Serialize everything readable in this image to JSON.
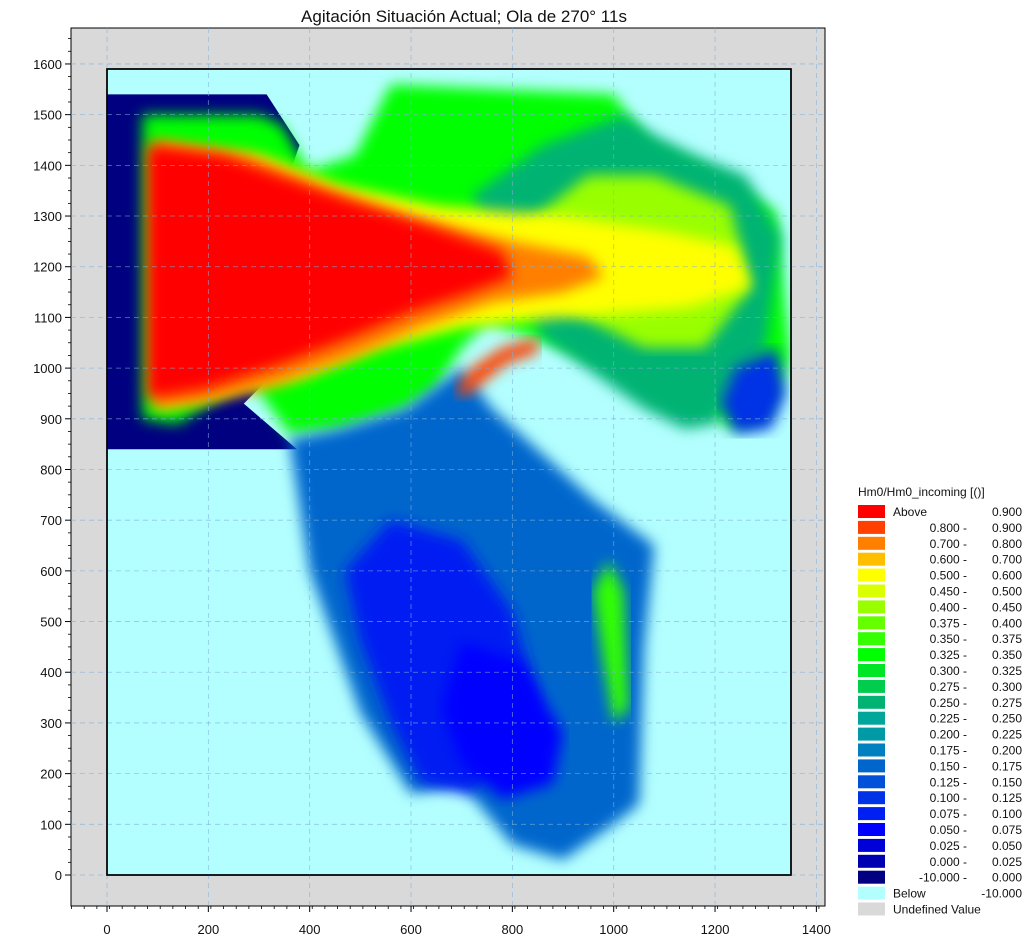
{
  "chart_data": {
    "type": "heatmap",
    "title": "Agitación Situación Actual; Ola de 270° 11s",
    "xlabel": "",
    "ylabel": "",
    "xlim": [
      -70,
      1410
    ],
    "ylim": [
      -70,
      1660
    ],
    "xticks": [
      0,
      200,
      400,
      600,
      800,
      1000,
      1200,
      1400
    ],
    "yticks": [
      0,
      100,
      200,
      300,
      400,
      500,
      600,
      700,
      800,
      900,
      1000,
      1100,
      1200,
      1300,
      1400,
      1500,
      1600
    ],
    "grid": true,
    "domain_bounds": {
      "x": [
        0,
        1350
      ],
      "y": [
        0,
        1590
      ]
    },
    "legend_position": "right",
    "legend": {
      "title": "Hm0/Hm0_incoming [()]",
      "entries": [
        {
          "low": "Above",
          "high": "0.900",
          "color": "#ff0000"
        },
        {
          "low": "0.800 -",
          "high": "0.900",
          "color": "#ff4000"
        },
        {
          "low": "0.700 -",
          "high": "0.800",
          "color": "#ff7f00"
        },
        {
          "low": "0.600 -",
          "high": "0.700",
          "color": "#ffbf00"
        },
        {
          "low": "0.500 -",
          "high": "0.600",
          "color": "#ffff00"
        },
        {
          "low": "0.450 -",
          "high": "0.500",
          "color": "#d9ff00"
        },
        {
          "low": "0.400 -",
          "high": "0.450",
          "color": "#99ff00"
        },
        {
          "low": "0.375 -",
          "high": "0.400",
          "color": "#66ff00"
        },
        {
          "low": "0.350 -",
          "high": "0.375",
          "color": "#33ff00"
        },
        {
          "low": "0.325 -",
          "high": "0.350",
          "color": "#00ff00"
        },
        {
          "low": "0.300 -",
          "high": "0.325",
          "color": "#00e626"
        },
        {
          "low": "0.275 -",
          "high": "0.300",
          "color": "#00cc4d"
        },
        {
          "low": "0.250 -",
          "high": "0.275",
          "color": "#00b373"
        },
        {
          "low": "0.225 -",
          "high": "0.250",
          "color": "#00a699"
        },
        {
          "low": "0.200 -",
          "high": "0.225",
          "color": "#0099a6"
        },
        {
          "low": "0.175 -",
          "high": "0.200",
          "color": "#0080bf"
        },
        {
          "low": "0.150 -",
          "high": "0.175",
          "color": "#0066cc"
        },
        {
          "low": "0.125 -",
          "high": "0.150",
          "color": "#0050d9"
        },
        {
          "low": "0.100 -",
          "high": "0.125",
          "color": "#0033e6"
        },
        {
          "low": "0.075 -",
          "high": "0.100",
          "color": "#001ff2"
        },
        {
          "low": "0.050 -",
          "high": "0.075",
          "color": "#0000ff"
        },
        {
          "low": "0.025 -",
          "high": "0.050",
          "color": "#0000d9"
        },
        {
          "low": "0.000 -",
          "high": "0.025",
          "color": "#0000b3"
        },
        {
          "low": "-10.000 -",
          "high": "0.000",
          "color": "#000080"
        },
        {
          "low": "Below",
          "high": "-10.000",
          "color": "#b3ffff"
        },
        {
          "low": "Undefined Value",
          "high": "",
          "color": "#d9d9d9"
        }
      ]
    },
    "regions": [
      {
        "name": "offshore-boundary",
        "level": "-10.000 - 0.000",
        "polygon": [
          [
            0,
            1540
          ],
          [
            315,
            1540
          ],
          [
            380,
            1440
          ],
          [
            345,
            1340
          ],
          [
            340,
            1000
          ],
          [
            270,
            930
          ],
          [
            375,
            840
          ],
          [
            0,
            840
          ]
        ]
      },
      {
        "name": "entrance-channel",
        "level": "0.325 - 0.350",
        "polygon": [
          [
            70,
            1500
          ],
          [
            120,
            1500
          ],
          [
            300,
            1500
          ],
          [
            345,
            1480
          ],
          [
            380,
            1420
          ],
          [
            400,
            1390
          ],
          [
            490,
            1420
          ],
          [
            560,
            1560
          ],
          [
            1000,
            1540
          ],
          [
            1070,
            1440
          ],
          [
            1160,
            1400
          ],
          [
            1320,
            1310
          ],
          [
            1350,
            1020
          ],
          [
            1300,
            900
          ],
          [
            1230,
            880
          ],
          [
            1160,
            940
          ],
          [
            900,
            1040
          ],
          [
            750,
            1090
          ],
          [
            700,
            1040
          ],
          [
            650,
            960
          ],
          [
            590,
            920
          ],
          [
            460,
            880
          ],
          [
            360,
            870
          ],
          [
            280,
            980
          ],
          [
            140,
            890
          ],
          [
            70,
            900
          ]
        ]
      },
      {
        "name": "main-basin",
        "level": "0.150 - 0.175",
        "polygon": [
          [
            460,
            880
          ],
          [
            590,
            920
          ],
          [
            700,
            1000
          ],
          [
            760,
            920
          ],
          [
            960,
            740
          ],
          [
            1080,
            650
          ],
          [
            1060,
            450
          ],
          [
            1050,
            140
          ],
          [
            1000,
            100
          ],
          [
            900,
            30
          ],
          [
            800,
            60
          ],
          [
            700,
            180
          ],
          [
            600,
            160
          ],
          [
            500,
            320
          ],
          [
            400,
            600
          ],
          [
            360,
            860
          ]
        ]
      },
      {
        "name": "inner-basin-core",
        "level": "0.075 - 0.100",
        "polygon": [
          [
            560,
            700
          ],
          [
            700,
            660
          ],
          [
            800,
            520
          ],
          [
            850,
            350
          ],
          [
            780,
            230
          ],
          [
            720,
            160
          ],
          [
            620,
            180
          ],
          [
            560,
            300
          ],
          [
            500,
            460
          ],
          [
            470,
            600
          ]
        ]
      },
      {
        "name": "deep-inner-basin",
        "level": "0.050 - 0.075",
        "polygon": [
          [
            700,
            460
          ],
          [
            820,
            420
          ],
          [
            900,
            280
          ],
          [
            880,
            180
          ],
          [
            780,
            150
          ],
          [
            700,
            220
          ],
          [
            660,
            330
          ]
        ]
      },
      {
        "name": "inner-basin-lane",
        "level": "0.350 - 0.375",
        "polygon": [
          [
            990,
            620
          ],
          [
            1020,
            560
          ],
          [
            1030,
            330
          ],
          [
            1000,
            300
          ],
          [
            980,
            420
          ],
          [
            960,
            560
          ]
        ]
      },
      {
        "name": "east-harbor",
        "level": "0.250 - 0.275",
        "polygon": [
          [
            860,
            1060
          ],
          [
            960,
            990
          ],
          [
            1060,
            920
          ],
          [
            1140,
            880
          ],
          [
            1200,
            890
          ],
          [
            1240,
            960
          ],
          [
            1300,
            1040
          ],
          [
            1330,
            1260
          ],
          [
            1260,
            1380
          ],
          [
            1160,
            1420
          ],
          [
            1080,
            1460
          ],
          [
            1020,
            1500
          ],
          [
            860,
            1440
          ],
          [
            720,
            1340
          ]
        ]
      },
      {
        "name": "east-harbor-inner",
        "level": "0.400 - 0.450",
        "polygon": [
          [
            900,
            1120
          ],
          [
            1060,
            1040
          ],
          [
            1180,
            1040
          ],
          [
            1270,
            1160
          ],
          [
            1230,
            1320
          ],
          [
            1080,
            1380
          ],
          [
            950,
            1380
          ],
          [
            820,
            1280
          ]
        ]
      },
      {
        "name": "east-harbor-pocket",
        "level": "0.100 - 0.125",
        "polygon": [
          [
            1240,
            1000
          ],
          [
            1320,
            1040
          ],
          [
            1340,
            950
          ],
          [
            1310,
            880
          ],
          [
            1240,
            870
          ],
          [
            1210,
            930
          ]
        ]
      },
      {
        "name": "channel-yellow",
        "level": "0.500 - 0.600",
        "polygon": [
          [
            100,
            1440
          ],
          [
            300,
            1420
          ],
          [
            460,
            1360
          ],
          [
            650,
            1320
          ],
          [
            900,
            1300
          ],
          [
            1100,
            1270
          ],
          [
            1240,
            1240
          ],
          [
            1270,
            1160
          ],
          [
            1150,
            1120
          ],
          [
            900,
            1100
          ],
          [
            700,
            1080
          ],
          [
            540,
            1040
          ],
          [
            380,
            980
          ],
          [
            200,
            940
          ],
          [
            100,
            920
          ]
        ]
      },
      {
        "name": "channel-orange",
        "level": "0.700 - 0.800",
        "polygon": [
          [
            90,
            1450
          ],
          [
            280,
            1420
          ],
          [
            420,
            1360
          ],
          [
            600,
            1300
          ],
          [
            800,
            1250
          ],
          [
            950,
            1220
          ],
          [
            980,
            1180
          ],
          [
            900,
            1150
          ],
          [
            760,
            1130
          ],
          [
            620,
            1080
          ],
          [
            480,
            1020
          ],
          [
            340,
            970
          ],
          [
            180,
            930
          ],
          [
            90,
            920
          ]
        ]
      },
      {
        "name": "channel-red",
        "level": "Above 0.900",
        "polygon": [
          [
            80,
            1440
          ],
          [
            230,
            1420
          ],
          [
            340,
            1380
          ],
          [
            480,
            1330
          ],
          [
            640,
            1280
          ],
          [
            780,
            1230
          ],
          [
            800,
            1180
          ],
          [
            720,
            1150
          ],
          [
            600,
            1110
          ],
          [
            480,
            1060
          ],
          [
            350,
            1010
          ],
          [
            200,
            960
          ],
          [
            80,
            940
          ]
        ]
      },
      {
        "name": "breakwater-hotspot",
        "level": "0.800 - 0.900",
        "polygon": [
          [
            690,
            960
          ],
          [
            720,
            1000
          ],
          [
            780,
            1040
          ],
          [
            850,
            1060
          ],
          [
            850,
            1030
          ],
          [
            790,
            1010
          ],
          [
            740,
            970
          ],
          [
            700,
            940
          ]
        ]
      }
    ]
  }
}
